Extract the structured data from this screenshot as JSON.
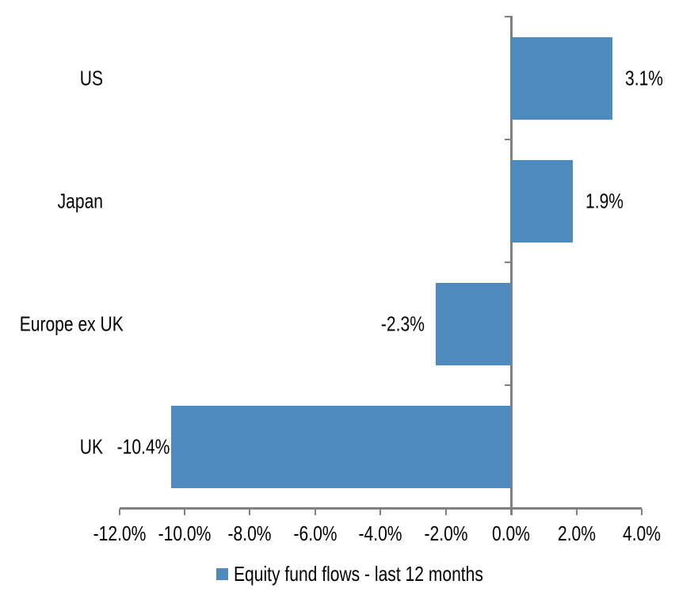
{
  "chart_data": {
    "type": "bar",
    "orientation": "horizontal",
    "title": "",
    "categories": [
      "US",
      "Japan",
      "Europe ex UK",
      "UK"
    ],
    "series": [
      {
        "name": "Equity fund flows - last 12 months",
        "values": [
          3.1,
          1.9,
          -2.3,
          -10.4
        ]
      }
    ],
    "data_labels": [
      "3.1%",
      "1.9%",
      "-2.3%",
      "-10.4%"
    ],
    "xlabel": "",
    "ylabel": "",
    "xlim": [
      -12,
      4
    ],
    "x_tick_values": [
      -12,
      -10,
      -8,
      -6,
      -4,
      -2,
      0,
      2,
      4
    ],
    "x_tick_labels": [
      "-12.0%",
      "-10.0%",
      "-8.0%",
      "-6.0%",
      "-4.0%",
      "-2.0%",
      "0.0%",
      "2.0%",
      "4.0%"
    ],
    "grid": false,
    "legend_position": "bottom",
    "colors": {
      "bar": "#4E8ABE",
      "axis": "#808080",
      "text": "#000000",
      "background": "#FFFFFF"
    }
  },
  "legend": {
    "label": "Equity fund flows - last 12 months"
  }
}
